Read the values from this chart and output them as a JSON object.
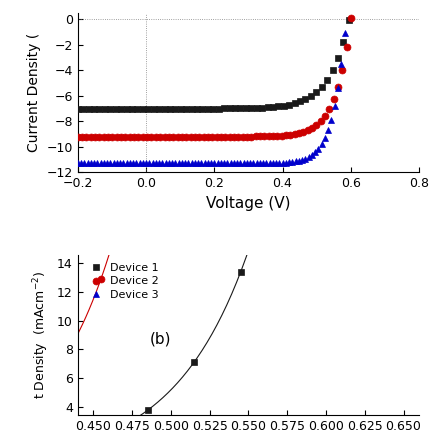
{
  "top": {
    "xlabel": "Voltage (V)",
    "ylabel": "Current Density (",
    "xlim": [
      -0.2,
      0.8
    ],
    "ylim": [
      -12,
      0.5
    ],
    "yticks": [
      0,
      -2,
      -4,
      -6,
      -8,
      -10,
      -12
    ],
    "xticks": [
      -0.2,
      0.0,
      0.2,
      0.4,
      0.6,
      0.8
    ],
    "devices": [
      {
        "color": "#1a1a1a",
        "marker": "s",
        "Jsc": -7.0,
        "Voc": 0.595,
        "n": 2.2
      },
      {
        "color": "#cc0000",
        "marker": "o",
        "Jsc": -9.2,
        "Voc": 0.6,
        "n": 1.7
      },
      {
        "color": "#0000cc",
        "marker": "^",
        "Jsc": -11.3,
        "Voc": 0.585,
        "n": 1.35
      }
    ]
  },
  "bottom": {
    "ylabel": "t Density  (mAcm",
    "xlim": [
      0.44,
      0.66
    ],
    "ylim": [
      3.5,
      14.5
    ],
    "yticks": [
      4,
      6,
      8,
      10,
      12,
      14
    ],
    "annotation": "(b)",
    "legend_labels": [
      "Device 1",
      "Device 2",
      "Device 3"
    ],
    "devices": [
      {
        "color": "#1a1a1a",
        "marker": "s"
      },
      {
        "color": "#cc0000",
        "marker": "o"
      },
      {
        "color": "#0000cc",
        "marker": "^"
      }
    ]
  }
}
